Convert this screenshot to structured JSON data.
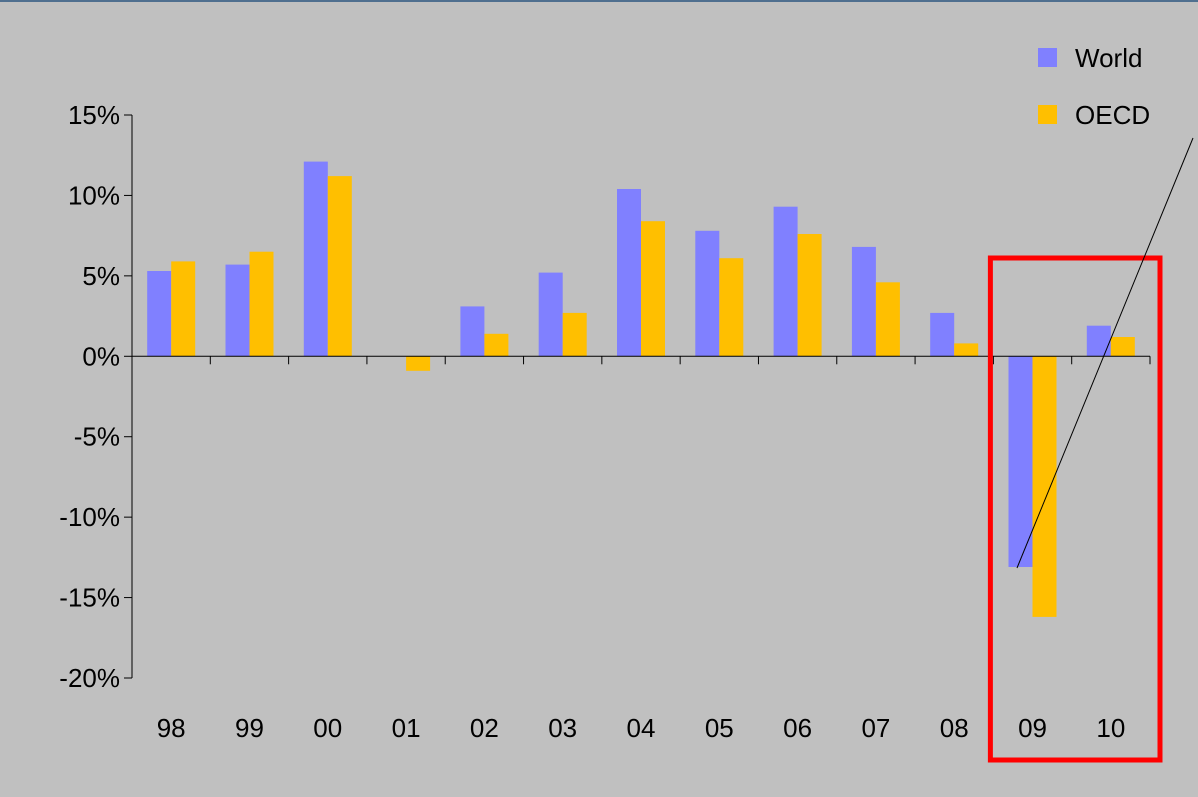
{
  "chart_data": {
    "type": "bar",
    "title": "",
    "xlabel": "",
    "ylabel": "",
    "categories": [
      "98",
      "99",
      "00",
      "01",
      "02",
      "03",
      "04",
      "05",
      "06",
      "07",
      "08",
      "09",
      "10"
    ],
    "series": [
      {
        "name": "World",
        "color": "#8080ff",
        "values": [
          5.3,
          5.7,
          12.1,
          0.0,
          3.1,
          5.2,
          10.4,
          7.8,
          9.3,
          6.8,
          2.7,
          -13.1,
          1.9
        ]
      },
      {
        "name": "OECD",
        "color": "#ffbf00",
        "values": [
          5.9,
          6.5,
          11.2,
          -0.9,
          1.4,
          2.7,
          8.4,
          6.1,
          7.6,
          4.6,
          0.8,
          -16.2,
          1.2
        ]
      }
    ],
    "ylim": [
      -20,
      15
    ],
    "yticks": [
      15,
      10,
      5,
      0,
      -5,
      -10,
      -15,
      -20
    ],
    "ytick_labels": [
      "15%",
      "10%",
      "5%",
      "0%",
      "-5%",
      "-10%",
      "-15%",
      "-20%"
    ],
    "grid": false,
    "legend": {
      "position": "top-right",
      "entries": [
        "World",
        "OECD"
      ]
    },
    "background_color": "#c0c0c0",
    "highlight": {
      "categories": [
        "09",
        "10"
      ],
      "color": "#ff0000"
    }
  }
}
